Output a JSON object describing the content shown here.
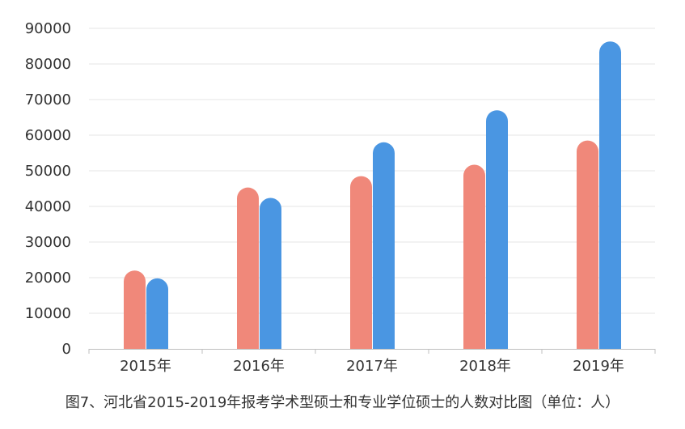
{
  "chart_data": {
    "type": "bar",
    "categories": [
      "2015年",
      "2016年",
      "2017年",
      "2018年",
      "2019年"
    ],
    "series": [
      {
        "values": [
          22000,
          45300,
          48500,
          51700,
          58500
        ],
        "color": "#f0887a"
      },
      {
        "values": [
          19800,
          42400,
          58000,
          67000,
          86300
        ],
        "color": "#4a96e2"
      }
    ],
    "ylim": [
      0,
      90000
    ],
    "yticks": [
      "0",
      "10000",
      "20000",
      "30000",
      "40000",
      "50000",
      "60000",
      "70000",
      "80000",
      "90000"
    ],
    "grid": true,
    "title": "",
    "xlabel": "",
    "ylabel": ""
  },
  "caption": "图7、河北省2015-2019年报考学术型硕士和专业学位硕士的人数对比图（单位：人）"
}
